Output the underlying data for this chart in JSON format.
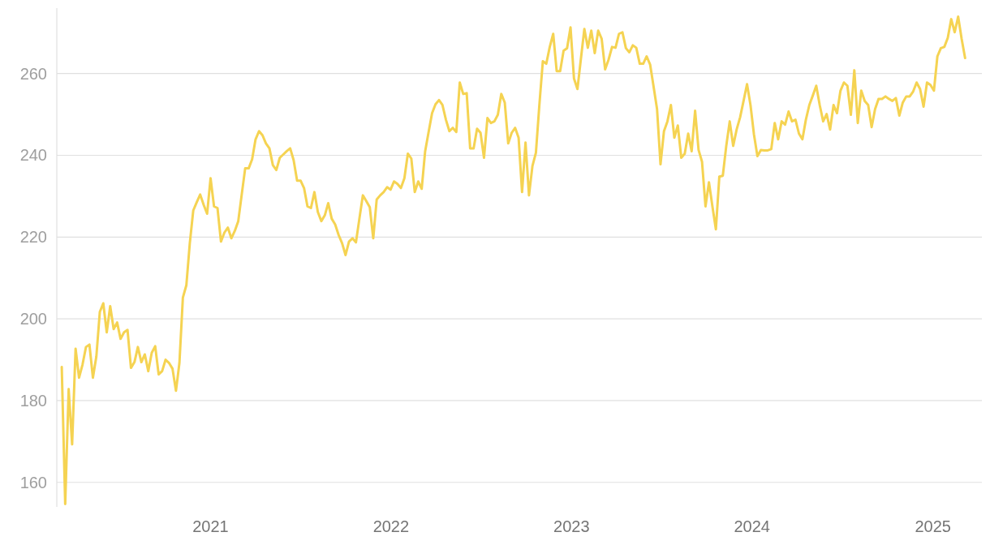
{
  "chart_data": {
    "type": "line",
    "x": [
      "2020-03-06",
      "2020-03-13",
      "2020-03-20",
      "2020-03-27",
      "2020-04-03",
      "2020-04-10",
      "2020-04-17",
      "2020-04-24",
      "2020-05-01",
      "2020-05-08",
      "2020-05-15",
      "2020-05-22",
      "2020-05-29",
      "2020-06-05",
      "2020-06-12",
      "2020-06-19",
      "2020-06-26",
      "2020-07-03",
      "2020-07-10",
      "2020-07-17",
      "2020-07-24",
      "2020-07-31",
      "2020-08-07",
      "2020-08-14",
      "2020-08-21",
      "2020-08-28",
      "2020-09-04",
      "2020-09-11",
      "2020-09-18",
      "2020-09-25",
      "2020-10-02",
      "2020-10-09",
      "2020-10-16",
      "2020-10-23",
      "2020-10-30",
      "2020-11-06",
      "2020-11-13",
      "2020-11-20",
      "2020-11-27",
      "2020-12-04",
      "2020-12-11",
      "2020-12-18",
      "2020-12-25",
      "2021-01-01",
      "2021-01-08",
      "2021-01-15",
      "2021-01-22",
      "2021-01-29",
      "2021-02-05",
      "2021-02-12",
      "2021-02-19",
      "2021-02-26",
      "2021-03-05",
      "2021-03-12",
      "2021-03-19",
      "2021-03-26",
      "2021-04-02",
      "2021-04-09",
      "2021-04-16",
      "2021-04-23",
      "2021-04-30",
      "2021-05-07",
      "2021-05-14",
      "2021-05-21",
      "2021-05-28",
      "2021-06-04",
      "2021-06-11",
      "2021-06-18",
      "2021-06-25",
      "2021-07-02",
      "2021-07-09",
      "2021-07-16",
      "2021-07-23",
      "2021-07-30",
      "2021-08-06",
      "2021-08-13",
      "2021-08-20",
      "2021-08-27",
      "2021-09-03",
      "2021-09-10",
      "2021-09-17",
      "2021-09-24",
      "2021-10-01",
      "2021-10-08",
      "2021-10-15",
      "2021-10-22",
      "2021-10-29",
      "2021-11-05",
      "2021-11-12",
      "2021-11-19",
      "2021-11-26",
      "2021-12-03",
      "2021-12-10",
      "2021-12-17",
      "2021-12-24",
      "2021-12-31",
      "2022-01-07",
      "2022-01-14",
      "2022-01-21",
      "2022-01-28",
      "2022-02-04",
      "2022-02-11",
      "2022-02-18",
      "2022-02-25",
      "2022-03-04",
      "2022-03-11",
      "2022-03-18",
      "2022-03-25",
      "2022-04-01",
      "2022-04-08",
      "2022-04-15",
      "2022-04-22",
      "2022-04-29",
      "2022-05-06",
      "2022-05-13",
      "2022-05-20",
      "2022-05-27",
      "2022-06-03",
      "2022-06-10",
      "2022-06-17",
      "2022-06-24",
      "2022-07-01",
      "2022-07-08",
      "2022-07-15",
      "2022-07-22",
      "2022-07-29",
      "2022-08-05",
      "2022-08-12",
      "2022-08-19",
      "2022-08-26",
      "2022-09-02",
      "2022-09-09",
      "2022-09-16",
      "2022-09-23",
      "2022-09-30",
      "2022-10-07",
      "2022-10-14",
      "2022-10-21",
      "2022-10-28",
      "2022-11-04",
      "2022-11-11",
      "2022-11-18",
      "2022-11-25",
      "2022-12-02",
      "2022-12-09",
      "2022-12-16",
      "2022-12-23",
      "2022-12-30",
      "2023-01-06",
      "2023-01-13",
      "2023-01-20",
      "2023-01-27",
      "2023-02-03",
      "2023-02-10",
      "2023-02-17",
      "2023-02-24",
      "2023-03-03",
      "2023-03-10",
      "2023-03-17",
      "2023-03-24",
      "2023-03-31",
      "2023-04-07",
      "2023-04-14",
      "2023-04-21",
      "2023-04-28",
      "2023-05-05",
      "2023-05-12",
      "2023-05-19",
      "2023-05-26",
      "2023-06-02",
      "2023-06-09",
      "2023-06-16",
      "2023-06-23",
      "2023-06-30",
      "2023-07-07",
      "2023-07-14",
      "2023-07-21",
      "2023-07-28",
      "2023-08-04",
      "2023-08-11",
      "2023-08-18",
      "2023-08-25",
      "2023-09-01",
      "2023-09-08",
      "2023-09-15",
      "2023-09-22",
      "2023-09-29",
      "2023-10-06",
      "2023-10-13",
      "2023-10-20",
      "2023-10-27",
      "2023-11-03",
      "2023-11-10",
      "2023-11-17",
      "2023-11-24",
      "2023-12-01",
      "2023-12-08",
      "2023-12-15",
      "2023-12-22",
      "2023-12-29",
      "2024-01-05",
      "2024-01-12",
      "2024-01-19",
      "2024-01-26",
      "2024-02-02",
      "2024-02-09",
      "2024-02-16",
      "2024-02-23",
      "2024-03-01",
      "2024-03-08",
      "2024-03-15",
      "2024-03-22",
      "2024-03-29",
      "2024-04-05",
      "2024-04-12",
      "2024-04-19",
      "2024-04-26",
      "2024-05-03",
      "2024-05-10",
      "2024-05-17",
      "2024-05-24",
      "2024-05-31",
      "2024-06-07",
      "2024-06-14",
      "2024-06-21",
      "2024-06-28",
      "2024-07-05",
      "2024-07-12",
      "2024-07-19",
      "2024-07-26",
      "2024-08-02",
      "2024-08-09",
      "2024-08-16",
      "2024-08-23",
      "2024-08-30",
      "2024-09-06",
      "2024-09-13",
      "2024-09-20",
      "2024-09-27",
      "2024-10-04",
      "2024-10-11",
      "2024-10-18",
      "2024-10-25",
      "2024-11-01",
      "2024-11-08",
      "2024-11-15",
      "2024-11-22",
      "2024-11-29",
      "2024-12-06",
      "2024-12-13",
      "2024-12-20",
      "2024-12-27",
      "2025-01-03",
      "2025-01-10",
      "2025-01-17",
      "2025-01-24",
      "2025-01-31",
      "2025-02-07",
      "2025-02-14",
      "2025-02-21",
      "2025-02-28",
      "2025-03-07"
    ],
    "values": [
      188.2,
      154.7,
      182.8,
      169.3,
      192.7,
      185.6,
      188.8,
      193.1,
      193.7,
      185.6,
      190.8,
      201.7,
      203.8,
      196.7,
      203.1,
      197.5,
      199.1,
      195.1,
      196.7,
      197.3,
      188.0,
      189.4,
      193.1,
      189.4,
      191.3,
      187.2,
      191.7,
      193.3,
      186.4,
      187.2,
      190.0,
      189.2,
      187.8,
      182.4,
      189.2,
      205.2,
      208.2,
      218.5,
      226.5,
      228.5,
      230.4,
      227.9,
      225.7,
      234.4,
      227.5,
      227.1,
      218.9,
      221.1,
      222.3,
      219.7,
      221.5,
      223.9,
      230.4,
      236.8,
      236.8,
      239.0,
      243.9,
      245.9,
      244.9,
      242.9,
      241.7,
      237.6,
      236.4,
      239.4,
      240.2,
      241.0,
      241.7,
      238.8,
      233.8,
      233.8,
      232.0,
      227.5,
      227.1,
      231.0,
      226.1,
      223.9,
      225.3,
      228.3,
      224.5,
      223.1,
      220.5,
      218.5,
      215.6,
      218.9,
      219.7,
      218.7,
      224.5,
      230.2,
      228.8,
      227.3,
      219.7,
      229.2,
      230.2,
      231.0,
      232.2,
      231.6,
      233.6,
      233.0,
      232.0,
      234.4,
      240.4,
      239.2,
      231.0,
      233.6,
      231.8,
      241.0,
      245.7,
      250.3,
      252.5,
      253.5,
      252.3,
      248.7,
      245.9,
      246.7,
      245.7,
      257.8,
      255.0,
      255.2,
      241.7,
      241.7,
      246.5,
      245.5,
      239.4,
      249.1,
      247.9,
      248.3,
      249.9,
      255.0,
      252.9,
      242.9,
      245.5,
      246.7,
      244.3,
      231.0,
      243.1,
      230.2,
      237.4,
      240.6,
      252.3,
      263.0,
      262.4,
      266.5,
      269.7,
      260.6,
      260.6,
      265.6,
      266.2,
      271.3,
      258.8,
      256.2,
      263.6,
      270.9,
      266.3,
      270.5,
      265.0,
      270.5,
      268.5,
      261.0,
      263.4,
      266.5,
      266.3,
      269.7,
      270.1,
      266.2,
      265.2,
      266.9,
      266.3,
      262.4,
      262.4,
      264.2,
      262.2,
      256.8,
      251.3,
      237.8,
      245.9,
      248.3,
      252.3,
      244.3,
      247.3,
      239.4,
      240.4,
      245.3,
      241.0,
      250.9,
      241.3,
      238.4,
      227.5,
      233.4,
      227.5,
      221.9,
      234.8,
      235.0,
      242.3,
      248.3,
      242.3,
      246.3,
      249.3,
      253.3,
      257.4,
      252.3,
      245.1,
      239.8,
      241.3,
      241.2,
      241.2,
      241.5,
      247.9,
      243.9,
      248.3,
      247.5,
      250.7,
      248.3,
      248.7,
      245.3,
      243.9,
      248.7,
      252.3,
      254.6,
      257.0,
      252.3,
      248.3,
      250.1,
      246.3,
      252.3,
      250.3,
      255.8,
      257.8,
      257.0,
      249.9,
      260.8,
      247.9,
      255.8,
      253.3,
      252.3,
      246.9,
      251.3,
      253.8,
      253.8,
      254.4,
      253.8,
      253.3,
      254.0,
      249.7,
      252.9,
      254.4,
      254.4,
      255.6,
      257.8,
      256.2,
      251.9,
      257.8,
      257.2,
      255.8,
      264.2,
      266.2,
      266.5,
      268.7,
      273.3,
      270.1,
      273.9,
      268.5,
      263.8
    ],
    "color": "#f5d352",
    "xlim": [
      "2020-02-25",
      "2025-04-10"
    ],
    "xticks": [
      "2021",
      "2022",
      "2023",
      "2024",
      "2025"
    ],
    "ylim": [
      154,
      276
    ],
    "yticks": [
      160,
      180,
      200,
      220,
      240,
      260
    ],
    "grid": "y"
  }
}
